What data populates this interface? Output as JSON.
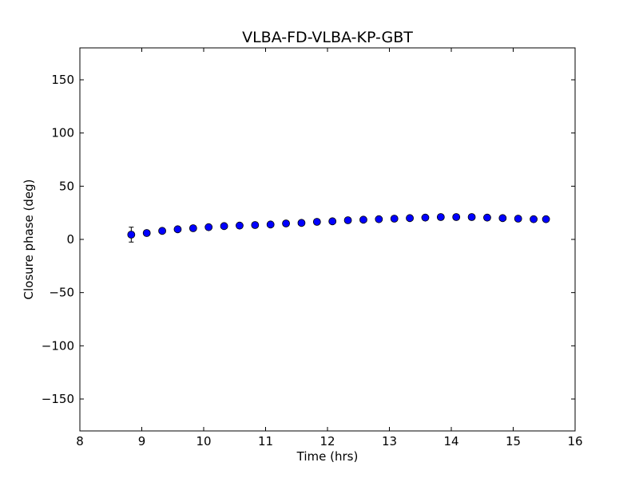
{
  "chart_data": {
    "type": "scatter",
    "title": "VLBA-FD-VLBA-KP-GBT",
    "xlabel": "Time (hrs)",
    "ylabel": "Closure phase (deg)",
    "xlim": [
      8,
      16
    ],
    "ylim": [
      -180,
      180
    ],
    "xticks": [
      8,
      9,
      10,
      11,
      12,
      13,
      14,
      15,
      16
    ],
    "xtick_labels": [
      "8",
      "9",
      "10",
      "11",
      "12",
      "13",
      "14",
      "15",
      "16"
    ],
    "yticks": [
      -150,
      -100,
      -50,
      0,
      50,
      100,
      150
    ],
    "ytick_labels": [
      "−150",
      "−100",
      "−50",
      "0",
      "50",
      "100",
      "150"
    ],
    "grid": false,
    "marker_color": "#0000ff",
    "marker_edge_color": "#000000",
    "points": [
      {
        "x": 8.83,
        "y": 4.5,
        "yerr": 7
      },
      {
        "x": 9.08,
        "y": 6,
        "yerr": 1.5
      },
      {
        "x": 9.33,
        "y": 8,
        "yerr": 1.5
      },
      {
        "x": 9.58,
        "y": 9.5,
        "yerr": 1.5
      },
      {
        "x": 9.83,
        "y": 10.5,
        "yerr": 1.5
      },
      {
        "x": 10.08,
        "y": 11.5,
        "yerr": 1.5
      },
      {
        "x": 10.33,
        "y": 12.5,
        "yerr": 1.5
      },
      {
        "x": 10.58,
        "y": 13,
        "yerr": 1.5
      },
      {
        "x": 10.83,
        "y": 13.5,
        "yerr": 1.5
      },
      {
        "x": 11.08,
        "y": 14,
        "yerr": 1.5
      },
      {
        "x": 11.33,
        "y": 15,
        "yerr": 1.5
      },
      {
        "x": 11.58,
        "y": 15.5,
        "yerr": 1.5
      },
      {
        "x": 11.83,
        "y": 16.5,
        "yerr": 1.5
      },
      {
        "x": 12.08,
        "y": 17,
        "yerr": 1.5
      },
      {
        "x": 12.33,
        "y": 18,
        "yerr": 1.5
      },
      {
        "x": 12.58,
        "y": 18.5,
        "yerr": 1.5
      },
      {
        "x": 12.83,
        "y": 19,
        "yerr": 1.5
      },
      {
        "x": 13.08,
        "y": 19.5,
        "yerr": 1.5
      },
      {
        "x": 13.33,
        "y": 20,
        "yerr": 1.5
      },
      {
        "x": 13.58,
        "y": 20.5,
        "yerr": 1.5
      },
      {
        "x": 13.83,
        "y": 21,
        "yerr": 1.5
      },
      {
        "x": 14.08,
        "y": 21,
        "yerr": 1.5
      },
      {
        "x": 14.33,
        "y": 21,
        "yerr": 1.5
      },
      {
        "x": 14.58,
        "y": 20.5,
        "yerr": 1.5
      },
      {
        "x": 14.83,
        "y": 20,
        "yerr": 1.5
      },
      {
        "x": 15.08,
        "y": 19.5,
        "yerr": 1.5
      },
      {
        "x": 15.33,
        "y": 19,
        "yerr": 1.5
      },
      {
        "x": 15.53,
        "y": 19,
        "yerr": 1.5
      }
    ]
  }
}
